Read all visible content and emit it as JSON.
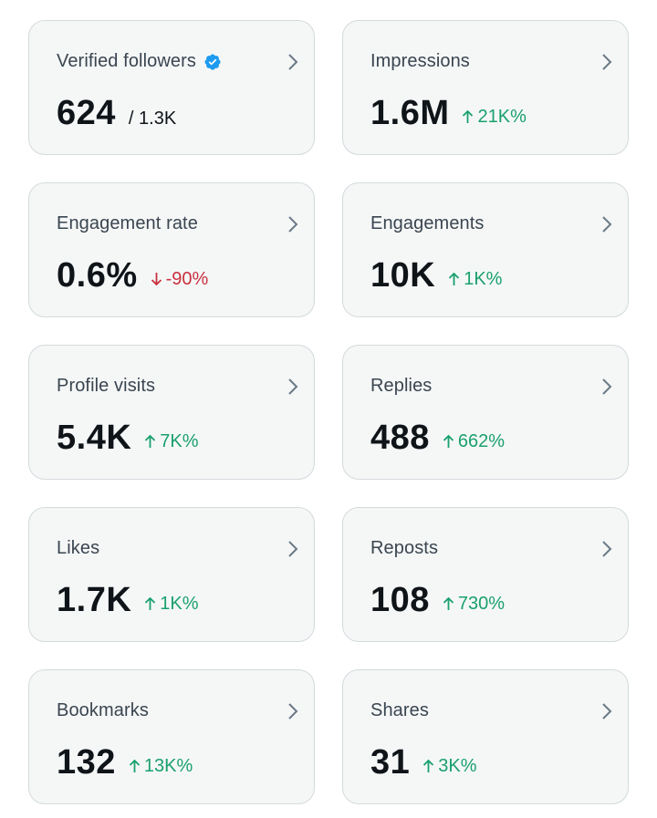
{
  "colors": {
    "up": "#1aa06d",
    "down": "#c9303f",
    "verified": "#1d9bf0",
    "card_bg": "#f5f7f7"
  },
  "cards": [
    {
      "title": "Verified followers",
      "value": "624",
      "sub": "/ 1.3K",
      "verified_icon": "verified-badge-icon"
    },
    {
      "title": "Impressions",
      "value": "1.6M",
      "delta": "21K%",
      "direction": "up"
    },
    {
      "title": "Engagement rate",
      "value": "0.6%",
      "delta": "-90%",
      "direction": "down"
    },
    {
      "title": "Engagements",
      "value": "10K",
      "delta": "1K%",
      "direction": "up"
    },
    {
      "title": "Profile visits",
      "value": "5.4K",
      "delta": "7K%",
      "direction": "up"
    },
    {
      "title": "Replies",
      "value": "488",
      "delta": "662%",
      "direction": "up"
    },
    {
      "title": "Likes",
      "value": "1.7K",
      "delta": "1K%",
      "direction": "up"
    },
    {
      "title": "Reposts",
      "value": "108",
      "delta": "730%",
      "direction": "up"
    },
    {
      "title": "Bookmarks",
      "value": "132",
      "delta": "13K%",
      "direction": "up"
    },
    {
      "title": "Shares",
      "value": "31",
      "delta": "3K%",
      "direction": "up"
    }
  ]
}
